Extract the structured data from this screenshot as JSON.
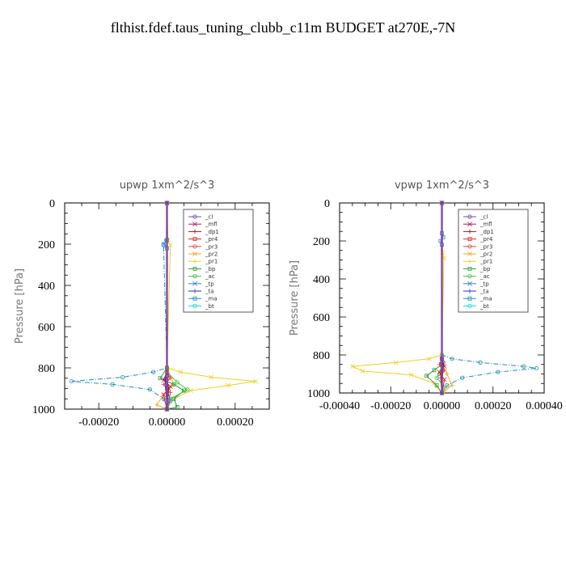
{
  "figure_title": "flthist.fdef.taus_tuning_clubb_c11m  BUDGET at270E,-7N",
  "legend_entries": [
    {
      "name": "_cl",
      "color": "#7b4aa8"
    },
    {
      "name": "_mfl",
      "color": "#aa1a6a"
    },
    {
      "name": "_dp1",
      "color": "#a01818"
    },
    {
      "name": "_pr4",
      "color": "#e8202a"
    },
    {
      "name": "_pr3",
      "color": "#ee4444"
    },
    {
      "name": "_pr2",
      "color": "#f5a623"
    },
    {
      "name": "_pr1",
      "color": "#f2cf1f"
    },
    {
      "name": "_bp",
      "color": "#2a9d3a"
    },
    {
      "name": "_ac",
      "color": "#3ec43e"
    },
    {
      "name": "_tp",
      "color": "#3a7bd5"
    },
    {
      "name": "_ta",
      "color": "#2a2ad0"
    },
    {
      "name": "_ma",
      "color": "#1f8fb3"
    },
    {
      "name": "_bt",
      "color": "#19d3e8"
    }
  ],
  "chart_data": [
    {
      "type": "line",
      "title": "upwp   1xm^2/s^3",
      "xlabel": "",
      "ylabel": "Pressure [hPa]",
      "xlim": [
        -0.0003,
        0.0003
      ],
      "ylim": [
        1000,
        0
      ],
      "xticks": [
        -0.0002,
        0.0,
        0.0002
      ],
      "xtick_labels": [
        "-0.00020",
        "0.00000",
        "0.00020"
      ],
      "yticks": [
        0,
        200,
        400,
        600,
        800,
        1000
      ],
      "ytick_labels": [
        "0",
        "200",
        "400",
        "600",
        "800",
        "1000"
      ],
      "legend_position": "top-right",
      "series": [
        {
          "name": "_ma",
          "color": "#1f8fb3",
          "dash": "6,2,1,2",
          "x": [
            0.0,
            -2e-06,
            -1e-05,
            0.0,
            -4e-05,
            -0.00013,
            -0.00028,
            -0.00016,
            -5e-05,
            -1e-05,
            0.0
          ],
          "y": [
            0,
            180,
            205,
            800,
            820,
            845,
            865,
            880,
            905,
            950,
            1000
          ]
        },
        {
          "name": "_pr1",
          "color": "#f2cf1f",
          "dash": "",
          "x": [
            0.0,
            3e-06,
            1e-05,
            0.0,
            4e-05,
            0.00013,
            0.00026,
            0.00018,
            7e-05,
            2e-05,
            0.0
          ],
          "y": [
            0,
            180,
            205,
            800,
            820,
            845,
            865,
            885,
            910,
            950,
            1000
          ]
        },
        {
          "name": "_pr2",
          "color": "#f5a623",
          "dash": "",
          "x": [
            0.0,
            0.0,
            2e-05,
            -1e-05,
            -3e-05,
            0.0
          ],
          "y": [
            0,
            800,
            880,
            930,
            980,
            1000
          ]
        },
        {
          "name": "_bp",
          "color": "#2a9d3a",
          "dash": "",
          "x": [
            0.0,
            0.0,
            -2e-05,
            2e-05,
            5e-05,
            2e-05,
            3e-05,
            0.0
          ],
          "y": [
            0,
            800,
            850,
            880,
            910,
            950,
            990,
            1000
          ]
        },
        {
          "name": "_ac",
          "color": "#3ec43e",
          "dash": "",
          "x": [
            0.0,
            0.0,
            3e-05,
            6e-05,
            1e-05,
            0.0
          ],
          "y": [
            0,
            820,
            870,
            905,
            950,
            1000
          ]
        },
        {
          "name": "_pr4",
          "color": "#e8202a",
          "dash": "",
          "x": [
            0.0,
            0.0,
            -1e-05,
            1e-05,
            -1e-05,
            0.0
          ],
          "y": [
            0,
            820,
            860,
            890,
            930,
            1000
          ]
        },
        {
          "name": "_pr3",
          "color": "#ee4444",
          "dash": "",
          "x": [
            0.0,
            0.0,
            1e-05,
            -1e-05,
            1e-05,
            0.0
          ],
          "y": [
            0,
            820,
            850,
            880,
            920,
            1000
          ]
        },
        {
          "name": "_tp",
          "color": "#3a7bd5",
          "dash": "",
          "x": [
            0.0,
            0.0,
            -1e-05,
            0.0,
            0.0,
            1e-05,
            0.0
          ],
          "y": [
            0,
            180,
            200,
            220,
            900,
            960,
            1000
          ]
        },
        {
          "name": "_ta",
          "color": "#2a2ad0",
          "dash": "",
          "x": [
            0.0,
            0.0,
            -5e-06,
            0.0
          ],
          "y": [
            0,
            840,
            855,
            1000
          ]
        },
        {
          "name": "_dp1",
          "color": "#a01818",
          "dash": "",
          "x": [
            0.0,
            0.0,
            5e-06,
            0.0
          ],
          "y": [
            0,
            850,
            900,
            1000
          ]
        },
        {
          "name": "_mfl",
          "color": "#aa1a6a",
          "dash": "",
          "x": [
            0.0,
            0.0
          ],
          "y": [
            0,
            1000
          ]
        },
        {
          "name": "_bt",
          "color": "#19d3e8",
          "dash": "",
          "x": [
            0.0,
            0.0
          ],
          "y": [
            0,
            1000
          ]
        },
        {
          "name": "_cl",
          "color": "#7b4aa8",
          "dash": "",
          "x": [
            0.0,
            0.0
          ],
          "y": [
            0,
            1000
          ]
        }
      ]
    },
    {
      "type": "line",
      "title": "vpwp   1xm^2/s^3",
      "xlabel": "",
      "ylabel": "Pressure [hPa]",
      "xlim": [
        -0.0004,
        0.0004
      ],
      "ylim": [
        1000,
        0
      ],
      "xticks": [
        -0.0004,
        -0.0002,
        0.0,
        0.0002,
        0.0004
      ],
      "xtick_labels": [
        "-0.00040",
        "-0.00020",
        "0.00000",
        "0.00020",
        "0.00040"
      ],
      "yticks": [
        0,
        200,
        400,
        600,
        800,
        1000
      ],
      "ytick_labels": [
        "0",
        "200",
        "400",
        "600",
        "800",
        "1000"
      ],
      "legend_position": "top-right",
      "series": [
        {
          "name": "_ma",
          "color": "#1f8fb3",
          "dash": "6,2,1,2",
          "x": [
            0.0,
            0.0,
            4e-05,
            0.00015,
            0.00032,
            0.00037,
            0.00022,
            8e-05,
            2e-05,
            0.0
          ],
          "y": [
            0,
            800,
            820,
            840,
            860,
            870,
            890,
            920,
            960,
            1000
          ]
        },
        {
          "name": "_pr1",
          "color": "#f2cf1f",
          "dash": "",
          "x": [
            0.0,
            3e-06,
            8e-06,
            0.0,
            -5e-05,
            -0.00018,
            -0.00035,
            -0.00031,
            -0.00012,
            -3e-05,
            0.0
          ],
          "y": [
            0,
            260,
            290,
            800,
            820,
            840,
            860,
            885,
            905,
            950,
            1000
          ]
        },
        {
          "name": "_pr2",
          "color": "#f5a623",
          "dash": "",
          "x": [
            0.0,
            0.0,
            2e-05,
            4e-05,
            1e-05,
            0.0
          ],
          "y": [
            0,
            850,
            900,
            960,
            990,
            1000
          ]
        },
        {
          "name": "_bp",
          "color": "#2a9d3a",
          "dash": "",
          "x": [
            0.0,
            0.0,
            -3e-05,
            -6e-05,
            -2e-05,
            0.0
          ],
          "y": [
            0,
            850,
            880,
            910,
            960,
            1000
          ]
        },
        {
          "name": "_ac",
          "color": "#3ec43e",
          "dash": "",
          "x": [
            0.0,
            0.0,
            -2e-05,
            1e-05,
            0.0
          ],
          "y": [
            0,
            860,
            920,
            970,
            1000
          ]
        },
        {
          "name": "_pr4",
          "color": "#e8202a",
          "dash": "",
          "x": [
            0.0,
            0.0,
            1e-05,
            -1e-05,
            1e-05,
            0.0
          ],
          "y": [
            0,
            820,
            860,
            890,
            930,
            1000
          ]
        },
        {
          "name": "_pr3",
          "color": "#ee4444",
          "dash": "",
          "x": [
            0.0,
            0.0,
            -1e-05,
            1e-05,
            -5e-06,
            0.0
          ],
          "y": [
            0,
            820,
            850,
            880,
            920,
            1000
          ]
        },
        {
          "name": "_tp",
          "color": "#3a7bd5",
          "dash": "",
          "x": [
            0.0,
            0.0,
            5e-06,
            -5e-06,
            0.0,
            0.0
          ],
          "y": [
            0,
            160,
            180,
            200,
            220,
            1000
          ]
        },
        {
          "name": "_ta",
          "color": "#2a2ad0",
          "dash": "",
          "x": [
            0.0,
            0.0,
            5e-06,
            0.0
          ],
          "y": [
            0,
            820,
            840,
            1000
          ]
        },
        {
          "name": "_dp1",
          "color": "#a01818",
          "dash": "",
          "x": [
            0.0,
            0.0,
            -5e-06,
            0.0
          ],
          "y": [
            0,
            850,
            900,
            1000
          ]
        },
        {
          "name": "_mfl",
          "color": "#aa1a6a",
          "dash": "",
          "x": [
            0.0,
            0.0
          ],
          "y": [
            0,
            1000
          ]
        },
        {
          "name": "_bt",
          "color": "#19d3e8",
          "dash": "",
          "x": [
            0.0,
            0.0
          ],
          "y": [
            0,
            1000
          ]
        },
        {
          "name": "_cl",
          "color": "#7b4aa8",
          "dash": "",
          "x": [
            0.0,
            0.0
          ],
          "y": [
            0,
            1000
          ]
        }
      ]
    }
  ]
}
